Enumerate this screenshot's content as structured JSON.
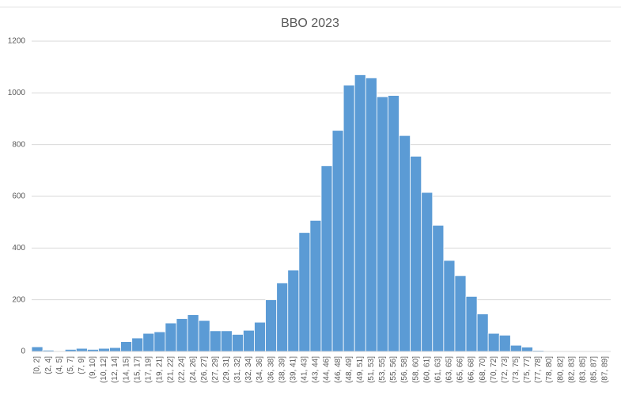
{
  "chart_data": {
    "type": "bar",
    "title": "BBO 2023",
    "categories": [
      "[0, 2]",
      "(2, 4]",
      "(4, 5]",
      "(5, 7]",
      "(7, 9]",
      "(9, 10]",
      "(10, 12]",
      "(12, 14]",
      "(14, 15]",
      "(15, 17]",
      "(17, 19]",
      "(19, 21]",
      "(21, 22]",
      "(22, 24]",
      "(24, 26]",
      "(26, 27]",
      "(27, 29]",
      "(29, 31]",
      "(31, 32]",
      "(32, 34]",
      "(34, 36]",
      "(36, 38]",
      "(38, 39]",
      "(39, 41]",
      "(41, 43]",
      "(43, 44]",
      "(44, 46]",
      "(46, 48]",
      "(48, 49]",
      "(49, 51]",
      "(51, 53]",
      "(53, 55]",
      "(55, 56]",
      "(56, 58]",
      "(58, 60]",
      "(60, 61]",
      "(61, 63]",
      "(63, 65]",
      "(65, 66]",
      "(66, 68]",
      "(68, 70]",
      "(70, 72]",
      "(72, 73]",
      "(73, 75]",
      "(75, 77]",
      "(77, 78]",
      "(78, 80]",
      "(80, 82]",
      "(82, 83]",
      "(83, 85]",
      "(85, 87]",
      "(87, 89]"
    ],
    "values": [
      18,
      5,
      0,
      8,
      12,
      8,
      12,
      15,
      38,
      52,
      70,
      76,
      110,
      127,
      142,
      120,
      80,
      80,
      66,
      82,
      113,
      200,
      265,
      315,
      460,
      507,
      718,
      855,
      1030,
      1070,
      1058,
      985,
      990,
      835,
      755,
      615,
      488,
      352,
      293,
      213,
      145,
      70,
      63,
      24,
      17,
      4,
      0,
      0,
      0,
      0,
      0,
      0
    ],
    "color": "#5b9bd5",
    "ylim": [
      0,
      1200
    ],
    "yticks": [
      0,
      200,
      400,
      600,
      800,
      1000,
      1200
    ],
    "grid": true
  }
}
